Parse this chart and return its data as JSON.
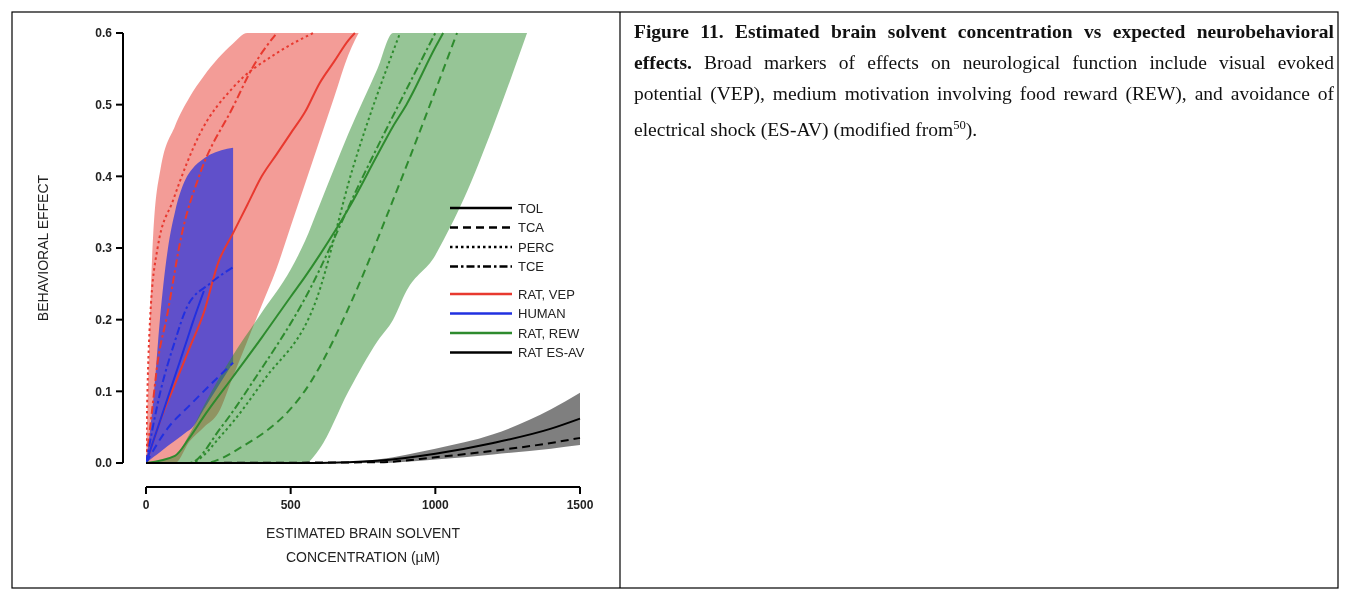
{
  "chart_data": {
    "type": "line",
    "title": "Figure 11. Estimated brain solvent concentration vs expected neurobehavioral effects.",
    "annotations": [
      "Broad markers of effects on neurological function include visual evoked potential (VEP), medium motivation involving food reward (REW), and avoidance of electrical shock (ES-AV) (modified from$^{50}$)."
    ],
    "xlabel": "ESTIMATED BRAIN SOLVENT\nCONCENTRATION (µM)",
    "ylabel": "BEHAVIORAL EFFECT",
    "xlim": [
      0,
      1500
    ],
    "xticks": [
      0,
      500,
      1000,
      1500
    ],
    "ylim": [
      0,
      0.6
    ],
    "yticks": [
      {
        "value": 0,
        "label": "0.0"
      },
      0.1,
      0.2,
      0.3,
      0.4,
      0.5,
      0.6
    ],
    "legend": "right",
    "series": [
      {
        "color": "#e8392f",
        "line_style": "solid",
        "x": [
          0,
          25,
          50,
          100,
          150,
          200,
          250,
          300,
          350,
          400,
          450,
          500,
          550,
          600,
          650,
          700,
          722,
          735
        ],
        "values": [
          0,
          0.03,
          0.06,
          0.11,
          0.16,
          0.21,
          0.28,
          0.32,
          0.36,
          0.4,
          0.43,
          0.46,
          0.49,
          0.53,
          0.56,
          0.59,
          0.6,
          null
        ],
        "upper": [
          0,
          0.32,
          0.41,
          0.47,
          0.51,
          0.54,
          0.565,
          0.585,
          0.6,
          0.6,
          0.6,
          0.6,
          0.6,
          0.6,
          0.6,
          0.6,
          0.6,
          0.6
        ],
        "lower": [
          0,
          0,
          0,
          0,
          0.03,
          0.05,
          0.07,
          0.12,
          0.17,
          0.22,
          0.27,
          0.33,
          0.39,
          0.45,
          0.51,
          0.57,
          0.59,
          0.6
        ]
      },
      {
        "color": "#e8392f",
        "line_style": "dotted",
        "x": [
          0,
          5,
          14,
          40,
          94,
          187,
          301,
          452,
          578
        ],
        "values": [
          0,
          0.1,
          0.2,
          0.3,
          0.367,
          0.46,
          0.524,
          0.572,
          0.6
        ]
      },
      {
        "color": "#e8392f",
        "line_style": "dashdot",
        "x": [
          0,
          20,
          40,
          72,
          124,
          187,
          301,
          370,
          452
        ],
        "values": [
          0,
          0.07,
          0.14,
          0.204,
          0.32,
          0.404,
          0.497,
          0.553,
          0.6
        ]
      },
      {
        "color": "#2130e0",
        "line_style": "solid",
        "x": [
          0,
          28,
          48,
          76,
          100,
          142,
          159,
          200,
          220,
          301
        ],
        "values": [
          0,
          0.034,
          0.058,
          0.092,
          0.121,
          0.172,
          0.193,
          0.24,
          null,
          null
        ],
        "upper": [
          0,
          0.1,
          0.2,
          0.3,
          0.35,
          0.4,
          0.41,
          0.425,
          0.43,
          0.44
        ],
        "lower": [
          0,
          0.009,
          0.015,
          0.024,
          0.031,
          0.044,
          0.049,
          0.075,
          0.088,
          0.14
        ]
      },
      {
        "color": "#2130e0",
        "line_style": "dashdot",
        "x": [
          0,
          50,
          100,
          142,
          220,
          301
        ],
        "values": [
          0,
          0.1,
          0.17,
          0.218,
          0.25,
          0.273
        ]
      },
      {
        "color": "#2130e0",
        "line_style": "dashed",
        "x": [
          0,
          76,
          150,
          301
        ],
        "values": [
          0,
          0.049,
          0.08,
          0.14
        ]
      },
      {
        "color": "#2e8b2e",
        "line_style": "solid",
        "x": [
          0,
          100,
          150,
          200,
          300,
          400,
          500,
          550,
          600,
          700,
          800,
          854,
          900,
          1000,
          1027,
          1100,
          1200,
          1317
        ],
        "values": [
          0,
          0.01,
          0.035,
          0.065,
          0.12,
          0.175,
          0.232,
          0.26,
          0.29,
          0.355,
          0.43,
          0.47,
          0.5,
          0.58,
          0.6,
          null,
          null,
          null
        ],
        "upper": [
          0,
          0.01,
          0.04,
          0.08,
          0.15,
          0.21,
          0.27,
          0.31,
          0.36,
          0.46,
          0.55,
          0.6,
          0.6,
          0.6,
          0.6,
          0.6,
          0.6,
          0.6
        ],
        "lower": [
          0,
          0,
          0,
          0,
          0,
          0,
          0,
          0,
          0.02,
          0.1,
          0.17,
          0.2,
          0.24,
          0.29,
          0.31,
          0.37,
          0.47,
          0.6
        ]
      },
      {
        "color": "#2e8b2e",
        "line_style": "dotted",
        "x": [
          0,
          150,
          270,
          408,
          588,
          716,
          878
        ],
        "values": [
          0,
          0,
          0.043,
          0.116,
          0.227,
          0.413,
          0.6
        ]
      },
      {
        "color": "#2e8b2e",
        "line_style": "dashed",
        "x": [
          0,
          200,
          325,
          574,
          712,
          854,
          1075
        ],
        "values": [
          0,
          0,
          0.021,
          0.116,
          0.227,
          0.367,
          0.6
        ]
      },
      {
        "color": "#2e8b2e",
        "line_style": "dashdot",
        "x": [
          0,
          150,
          260,
          380,
          546,
          750,
          1000
        ],
        "values": [
          0,
          0,
          0.05,
          0.12,
          0.227,
          0.4,
          0.6
        ]
      },
      {
        "color": "#000000",
        "line_style": "solid",
        "x": [
          0,
          600,
          800,
          1000,
          1200,
          1400,
          1500
        ],
        "values": [
          0,
          0,
          0.003,
          0.013,
          0.028,
          0.048,
          0.062
        ],
        "upper": [
          0,
          0,
          0.005,
          0.02,
          0.04,
          0.075,
          0.098
        ],
        "lower": [
          0,
          0,
          0,
          0.005,
          0.012,
          0.02,
          0.025
        ]
      },
      {
        "color": "#000000",
        "line_style": "dashed",
        "x": [
          0,
          800,
          1000,
          1200,
          1400,
          1500
        ],
        "values": [
          0,
          0.001,
          0.008,
          0.017,
          0.028,
          0.035
        ]
      },
      {
        "name": "TOL",
        "color": "#000000",
        "line_style": "solid"
      },
      {
        "name": "TCA",
        "color": "#000000",
        "line_style": "dashed"
      },
      {
        "name": "PERC",
        "color": "#000000",
        "line_style": "dotted"
      },
      {
        "name": "TCE",
        "color": "#000000",
        "line_style": "dashdot"
      },
      {
        "name": "RAT, VEP",
        "color": "#e8392f",
        "line_style": "solid"
      },
      {
        "name": "HUMAN",
        "color": "#2130e0",
        "line_style": "solid"
      },
      {
        "name": "RAT, REW",
        "color": "#2e8b2e",
        "line_style": "solid"
      },
      {
        "name": "RAT ES-AV",
        "color": "#000000",
        "line_style": "solid"
      }
    ]
  }
}
